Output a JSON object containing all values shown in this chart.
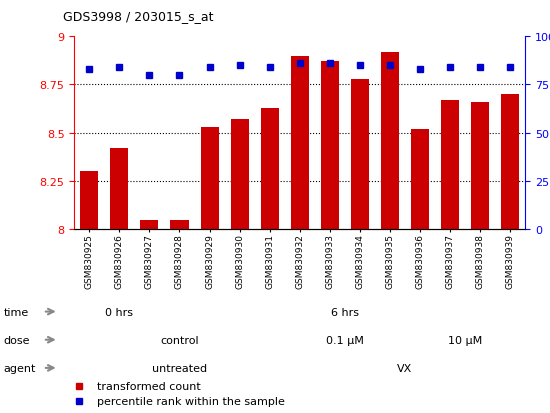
{
  "title": "GDS3998 / 203015_s_at",
  "samples": [
    "GSM830925",
    "GSM830926",
    "GSM830927",
    "GSM830928",
    "GSM830929",
    "GSM830930",
    "GSM830931",
    "GSM830932",
    "GSM830933",
    "GSM830934",
    "GSM830935",
    "GSM830936",
    "GSM830937",
    "GSM830938",
    "GSM830939"
  ],
  "transformed_count": [
    8.3,
    8.42,
    8.05,
    8.05,
    8.53,
    8.57,
    8.63,
    8.9,
    8.87,
    8.78,
    8.92,
    8.52,
    8.67,
    8.66,
    8.7
  ],
  "percentile_rank": [
    83,
    84,
    80,
    80,
    84,
    85,
    84,
    86,
    86,
    85,
    85,
    83,
    84,
    84,
    84
  ],
  "ylim_left": [
    8.0,
    9.0
  ],
  "ylim_right": [
    0,
    100
  ],
  "yticks_left": [
    8.0,
    8.25,
    8.5,
    8.75,
    9.0
  ],
  "yticks_right": [
    0,
    25,
    50,
    75,
    100
  ],
  "bar_color": "#cc0000",
  "dot_color": "#0000cc",
  "grid_lines": [
    8.25,
    8.5,
    8.75
  ],
  "agent_labels": [
    {
      "label": "untreated",
      "start": 0,
      "end": 7,
      "color": "#aaddaa"
    },
    {
      "label": "VX",
      "start": 7,
      "end": 15,
      "color": "#44bb44"
    }
  ],
  "dose_labels": [
    {
      "label": "control",
      "start": 0,
      "end": 7,
      "color": "#ccccff"
    },
    {
      "label": "0.1 μM",
      "start": 7,
      "end": 11,
      "color": "#bbbbee"
    },
    {
      "label": "10 μM",
      "start": 11,
      "end": 15,
      "color": "#8888cc"
    }
  ],
  "time_labels": [
    {
      "label": "0 hrs",
      "start": 0,
      "end": 3,
      "color": "#ffcccc"
    },
    {
      "label": "6 hrs",
      "start": 3,
      "end": 15,
      "color": "#ee8888"
    }
  ],
  "row_label_names": [
    "agent",
    "dose",
    "time"
  ],
  "legend_items": [
    {
      "label": "transformed count",
      "color": "#cc0000"
    },
    {
      "label": "percentile rank within the sample",
      "color": "#0000cc"
    }
  ],
  "bg_color": "#ffffff",
  "plot_bg_color": "#ffffff"
}
